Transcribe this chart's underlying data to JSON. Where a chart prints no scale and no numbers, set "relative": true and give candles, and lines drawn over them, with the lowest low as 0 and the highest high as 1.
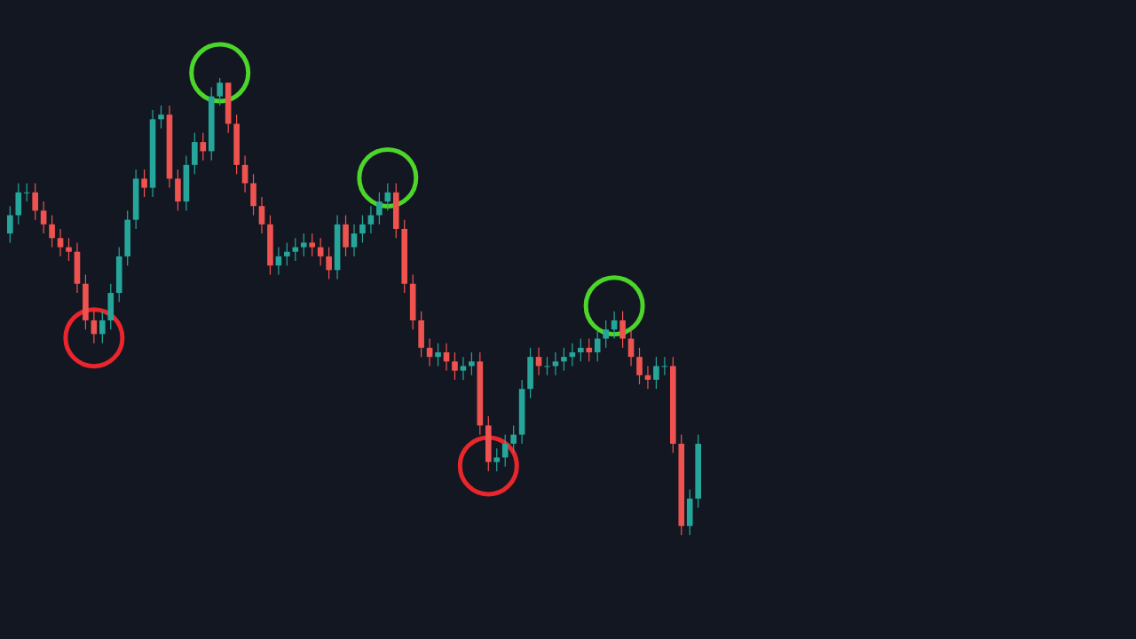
{
  "chart_data": {
    "type": "candlestick",
    "relative": true,
    "categories": [
      null,
      null,
      null,
      null,
      null,
      null,
      null,
      null,
      null,
      null,
      null,
      null,
      null,
      null,
      null,
      null,
      null,
      null,
      null,
      null,
      null,
      null,
      null,
      null,
      null,
      null,
      null,
      null,
      null,
      null,
      null,
      null,
      null,
      null,
      null,
      null,
      null,
      null,
      null,
      null,
      null,
      null,
      null,
      null,
      null,
      null,
      null,
      null,
      null,
      null,
      null,
      null,
      null,
      null,
      null,
      null,
      null,
      null,
      null,
      null,
      null,
      null,
      null,
      null,
      null,
      null,
      null,
      null,
      null,
      null,
      null,
      null,
      null,
      null,
      null,
      null,
      null,
      null,
      null,
      null,
      null,
      null,
      null
    ],
    "ohlc": [
      [
        0.66,
        0.72,
        0.64,
        0.7
      ],
      [
        0.7,
        0.77,
        0.68,
        0.75
      ],
      [
        0.75,
        0.77,
        0.73,
        0.75
      ],
      [
        0.75,
        0.77,
        0.69,
        0.71
      ],
      [
        0.71,
        0.73,
        0.66,
        0.68
      ],
      [
        0.68,
        0.7,
        0.63,
        0.65
      ],
      [
        0.65,
        0.67,
        0.61,
        0.63
      ],
      [
        0.63,
        0.65,
        0.6,
        0.62
      ],
      [
        0.62,
        0.64,
        0.53,
        0.55
      ],
      [
        0.55,
        0.57,
        0.45,
        0.47
      ],
      [
        0.47,
        0.49,
        0.42,
        0.44
      ],
      [
        0.44,
        0.49,
        0.42,
        0.47
      ],
      [
        0.47,
        0.55,
        0.45,
        0.53
      ],
      [
        0.53,
        0.63,
        0.51,
        0.61
      ],
      [
        0.61,
        0.71,
        0.59,
        0.69
      ],
      [
        0.69,
        0.8,
        0.67,
        0.78
      ],
      [
        0.78,
        0.8,
        0.74,
        0.76
      ],
      [
        0.76,
        0.93,
        0.74,
        0.91
      ],
      [
        0.91,
        0.94,
        0.89,
        0.92
      ],
      [
        0.92,
        0.94,
        0.76,
        0.78
      ],
      [
        0.78,
        0.8,
        0.71,
        0.73
      ],
      [
        0.73,
        0.83,
        0.71,
        0.81
      ],
      [
        0.81,
        0.88,
        0.79,
        0.86
      ],
      [
        0.86,
        0.88,
        0.82,
        0.84
      ],
      [
        0.84,
        0.98,
        0.82,
        0.96
      ],
      [
        0.96,
        1.0,
        0.94,
        0.99
      ],
      [
        0.99,
        0.99,
        0.88,
        0.9
      ],
      [
        0.9,
        0.92,
        0.79,
        0.81
      ],
      [
        0.81,
        0.83,
        0.75,
        0.77
      ],
      [
        0.77,
        0.79,
        0.7,
        0.72
      ],
      [
        0.72,
        0.74,
        0.66,
        0.68
      ],
      [
        0.68,
        0.7,
        0.57,
        0.59
      ],
      [
        0.59,
        0.63,
        0.57,
        0.61
      ],
      [
        0.61,
        0.64,
        0.59,
        0.62
      ],
      [
        0.62,
        0.65,
        0.6,
        0.63
      ],
      [
        0.63,
        0.66,
        0.61,
        0.64
      ],
      [
        0.64,
        0.66,
        0.61,
        0.63
      ],
      [
        0.63,
        0.65,
        0.59,
        0.61
      ],
      [
        0.61,
        0.63,
        0.56,
        0.58
      ],
      [
        0.58,
        0.7,
        0.56,
        0.68
      ],
      [
        0.68,
        0.7,
        0.61,
        0.63
      ],
      [
        0.63,
        0.68,
        0.61,
        0.66
      ],
      [
        0.66,
        0.7,
        0.64,
        0.68
      ],
      [
        0.68,
        0.72,
        0.66,
        0.7
      ],
      [
        0.7,
        0.75,
        0.68,
        0.73
      ],
      [
        0.73,
        0.77,
        0.71,
        0.75
      ],
      [
        0.75,
        0.77,
        0.65,
        0.67
      ],
      [
        0.67,
        0.69,
        0.53,
        0.55
      ],
      [
        0.55,
        0.57,
        0.45,
        0.47
      ],
      [
        0.47,
        0.49,
        0.39,
        0.41
      ],
      [
        0.41,
        0.43,
        0.37,
        0.39
      ],
      [
        0.39,
        0.42,
        0.37,
        0.4
      ],
      [
        0.4,
        0.42,
        0.36,
        0.38
      ],
      [
        0.38,
        0.4,
        0.34,
        0.36
      ],
      [
        0.36,
        0.39,
        0.34,
        0.37
      ],
      [
        0.37,
        0.4,
        0.35,
        0.38
      ],
      [
        0.38,
        0.4,
        0.22,
        0.24
      ],
      [
        0.24,
        0.26,
        0.14,
        0.16
      ],
      [
        0.16,
        0.19,
        0.14,
        0.17
      ],
      [
        0.17,
        0.22,
        0.15,
        0.2
      ],
      [
        0.2,
        0.24,
        0.18,
        0.22
      ],
      [
        0.22,
        0.34,
        0.2,
        0.32
      ],
      [
        0.32,
        0.41,
        0.3,
        0.39
      ],
      [
        0.39,
        0.41,
        0.35,
        0.37
      ],
      [
        0.37,
        0.39,
        0.35,
        0.37
      ],
      [
        0.37,
        0.4,
        0.35,
        0.38
      ],
      [
        0.38,
        0.41,
        0.36,
        0.39
      ],
      [
        0.39,
        0.42,
        0.37,
        0.4
      ],
      [
        0.4,
        0.43,
        0.38,
        0.41
      ],
      [
        0.41,
        0.43,
        0.38,
        0.4
      ],
      [
        0.4,
        0.45,
        0.38,
        0.43
      ],
      [
        0.43,
        0.47,
        0.41,
        0.45
      ],
      [
        0.45,
        0.49,
        0.43,
        0.47
      ],
      [
        0.47,
        0.49,
        0.41,
        0.43
      ],
      [
        0.43,
        0.45,
        0.37,
        0.39
      ],
      [
        0.39,
        0.41,
        0.33,
        0.35
      ],
      [
        0.35,
        0.37,
        0.32,
        0.34
      ],
      [
        0.34,
        0.39,
        0.32,
        0.37
      ],
      [
        0.37,
        0.39,
        0.35,
        0.37
      ],
      [
        0.37,
        0.39,
        0.18,
        0.2
      ],
      [
        0.2,
        0.22,
        0.0,
        0.02
      ],
      [
        0.02,
        0.1,
        0.0,
        0.08
      ],
      [
        0.08,
        0.22,
        0.06,
        0.2
      ]
    ]
  }
}
